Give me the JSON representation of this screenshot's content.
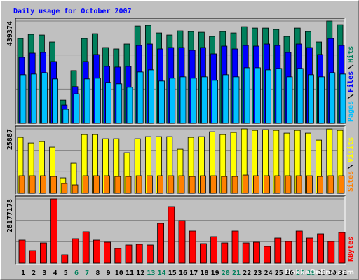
{
  "chart_data": [
    {
      "type": "bar",
      "title": "Daily usage for October 2007",
      "ylim": [
        0,
        439374
      ],
      "yticks": [
        439374
      ],
      "grid": true,
      "series": [
        {
          "name": "Hits",
          "color": "#00805c",
          "values": [
            364000,
            382000,
            379000,
            349000,
            99000,
            226000,
            364000,
            385000,
            325000,
            319000,
            340000,
            418000,
            421000,
            388000,
            379000,
            397000,
            394000,
            391000,
            373000,
            394000,
            388000,
            415000,
            409000,
            409000,
            403000,
            373000,
            409000,
            394000,
            349000,
            439374,
            424000
          ]
        },
        {
          "name": "Files",
          "color": "#0000ff",
          "values": [
            283000,
            301000,
            304000,
            265000,
            78000,
            157000,
            265000,
            295000,
            244000,
            241000,
            244000,
            334000,
            340000,
            319000,
            325000,
            325000,
            313000,
            325000,
            298000,
            331000,
            319000,
            334000,
            331000,
            340000,
            334000,
            304000,
            340000,
            325000,
            295000,
            364000,
            334000
          ]
        },
        {
          "name": "Pages",
          "color": "#00c0ff",
          "values": [
            208000,
            211000,
            217000,
            190000,
            60000,
            126000,
            190000,
            193000,
            175000,
            169000,
            154000,
            220000,
            229000,
            181000,
            193000,
            199000,
            193000,
            199000,
            184000,
            208000,
            199000,
            238000,
            238000,
            229000,
            235000,
            199000,
            235000,
            208000,
            199000,
            217000,
            211000
          ]
        }
      ]
    },
    {
      "type": "bar",
      "ylim": [
        0,
        25887
      ],
      "yticks": [
        25887
      ],
      "grid": true,
      "series": [
        {
          "name": "Visits",
          "color": "#ffff00",
          "values": [
            22480,
            20230,
            20790,
            18550,
            6180,
            12080,
            23600,
            23600,
            21920,
            21920,
            16300,
            21920,
            22760,
            22760,
            22760,
            17700,
            22480,
            22760,
            24730,
            23600,
            24450,
            25887,
            25290,
            25570,
            25290,
            24170,
            25290,
            24170,
            21360,
            25850,
            25290
          ]
        },
        {
          "name": "Sites",
          "color": "#ff8000",
          "values": [
            7020,
            7020,
            7020,
            6740,
            3930,
            3370,
            7020,
            7020,
            7020,
            6740,
            6740,
            7020,
            7020,
            7020,
            7020,
            7020,
            6740,
            7020,
            7020,
            6740,
            6740,
            7300,
            7020,
            7020,
            7020,
            7020,
            7020,
            7020,
            6740,
            7020,
            7020
          ]
        }
      ]
    },
    {
      "type": "bar",
      "ylim": [
        0,
        28177178
      ],
      "yticks": [
        28177178
      ],
      "grid": true,
      "categories": [
        "1",
        "2",
        "3",
        "4",
        "5",
        "6",
        "7",
        "8",
        "9",
        "10",
        "11",
        "12",
        "13",
        "14",
        "15",
        "16",
        "17",
        "18",
        "19",
        "20",
        "21",
        "22",
        "23",
        "24",
        "25",
        "26",
        "27",
        "28",
        "29",
        "30",
        "31"
      ],
      "weekends": [
        "6",
        "7",
        "13",
        "14",
        "20",
        "21",
        "27",
        "28"
      ],
      "weekend_color": "#00805c",
      "series": [
        {
          "name": "KBytes",
          "color": "#ff0000",
          "values": [
            10107000,
            5513000,
            8882000,
            28177178,
            3675000,
            10720000,
            13782000,
            10107000,
            9188000,
            6432000,
            7963000,
            8269000,
            7963000,
            17458000,
            24808000,
            18683000,
            14089000,
            8576000,
            11638000,
            8882000,
            14089000,
            8882000,
            9188000,
            7351000,
            11026000,
            9494000,
            14089000,
            11026000,
            12864000,
            9494000,
            13476000
          ]
        }
      ]
    }
  ],
  "watermark": "HokkaOnline.com"
}
